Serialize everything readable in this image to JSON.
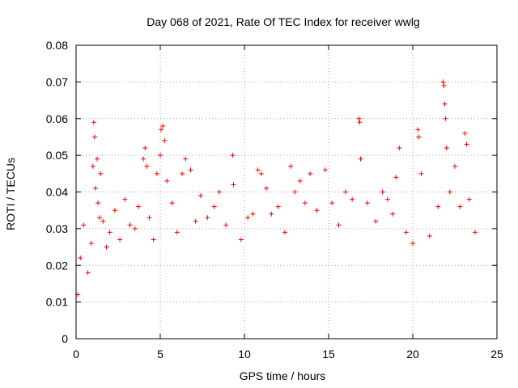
{
  "chart_data": {
    "type": "scatter",
    "title": "Day 068 of 2021, Rate Of TEC Index for receiver wwlg",
    "xlabel": "GPS time / hours",
    "ylabel": "ROTI / TECUs",
    "xlim": [
      0,
      25
    ],
    "ylim": [
      0,
      0.08
    ],
    "xticks": [
      0,
      5,
      10,
      15,
      20,
      25
    ],
    "xtick_labels": [
      "0",
      "5",
      "10",
      "15",
      "20",
      "25"
    ],
    "yticks": [
      0,
      0.01,
      0.02,
      0.03,
      0.04,
      0.05,
      0.06,
      0.07,
      0.08
    ],
    "ytick_labels": [
      "0",
      "0.01",
      "0.02",
      "0.03",
      "0.04",
      "0.05",
      "0.06",
      "0.07",
      "0.08"
    ],
    "grid": true,
    "marker": "+",
    "color": "#ff0000",
    "series": [
      {
        "name": "ROTI",
        "points": [
          [
            0.1,
            0.012
          ],
          [
            0.25,
            0.022
          ],
          [
            0.45,
            0.031
          ],
          [
            0.7,
            0.018
          ],
          [
            0.9,
            0.026
          ],
          [
            1.0,
            0.047
          ],
          [
            1.05,
            0.059
          ],
          [
            1.1,
            0.055
          ],
          [
            1.15,
            0.041
          ],
          [
            1.25,
            0.049
          ],
          [
            1.3,
            0.037
          ],
          [
            1.4,
            0.033
          ],
          [
            1.45,
            0.045
          ],
          [
            1.6,
            0.032
          ],
          [
            1.8,
            0.025
          ],
          [
            2.0,
            0.029
          ],
          [
            2.3,
            0.035
          ],
          [
            2.6,
            0.027
          ],
          [
            2.9,
            0.038
          ],
          [
            3.2,
            0.031
          ],
          [
            3.5,
            0.03
          ],
          [
            3.7,
            0.036
          ],
          [
            4.0,
            0.049
          ],
          [
            4.1,
            0.052
          ],
          [
            4.2,
            0.047
          ],
          [
            4.35,
            0.033
          ],
          [
            4.6,
            0.027
          ],
          [
            4.8,
            0.045
          ],
          [
            5.0,
            0.05
          ],
          [
            5.05,
            0.057
          ],
          [
            5.15,
            0.058
          ],
          [
            5.25,
            0.054
          ],
          [
            5.4,
            0.043
          ],
          [
            5.7,
            0.037
          ],
          [
            6.0,
            0.029
          ],
          [
            6.3,
            0.045
          ],
          [
            6.5,
            0.049
          ],
          [
            6.8,
            0.046
          ],
          [
            7.1,
            0.032
          ],
          [
            7.4,
            0.039
          ],
          [
            7.8,
            0.033
          ],
          [
            8.2,
            0.036
          ],
          [
            8.5,
            0.04
          ],
          [
            8.9,
            0.031
          ],
          [
            9.3,
            0.05
          ],
          [
            9.35,
            0.042
          ],
          [
            9.8,
            0.027
          ],
          [
            10.2,
            0.033
          ],
          [
            10.5,
            0.034
          ],
          [
            10.8,
            0.046
          ],
          [
            11.0,
            0.045
          ],
          [
            11.3,
            0.041
          ],
          [
            11.6,
            0.034
          ],
          [
            12.0,
            0.036
          ],
          [
            12.4,
            0.029
          ],
          [
            12.75,
            0.047
          ],
          [
            13.0,
            0.04
          ],
          [
            13.3,
            0.043
          ],
          [
            13.6,
            0.037
          ],
          [
            13.9,
            0.045
          ],
          [
            14.3,
            0.035
          ],
          [
            14.8,
            0.046
          ],
          [
            15.2,
            0.037
          ],
          [
            15.6,
            0.031
          ],
          [
            16.0,
            0.04
          ],
          [
            16.4,
            0.038
          ],
          [
            16.8,
            0.06
          ],
          [
            16.85,
            0.059
          ],
          [
            16.9,
            0.049
          ],
          [
            17.3,
            0.037
          ],
          [
            17.8,
            0.032
          ],
          [
            18.2,
            0.04
          ],
          [
            18.5,
            0.038
          ],
          [
            18.8,
            0.034
          ],
          [
            19.0,
            0.044
          ],
          [
            19.2,
            0.052
          ],
          [
            19.6,
            0.029
          ],
          [
            20.0,
            0.026
          ],
          [
            20.3,
            0.057
          ],
          [
            20.35,
            0.055
          ],
          [
            20.5,
            0.045
          ],
          [
            21.0,
            0.028
          ],
          [
            21.5,
            0.036
          ],
          [
            21.8,
            0.07
          ],
          [
            21.85,
            0.069
          ],
          [
            21.9,
            0.064
          ],
          [
            21.95,
            0.06
          ],
          [
            22.0,
            0.052
          ],
          [
            22.2,
            0.04
          ],
          [
            22.5,
            0.047
          ],
          [
            22.8,
            0.036
          ],
          [
            23.1,
            0.056
          ],
          [
            23.2,
            0.053
          ],
          [
            23.35,
            0.038
          ],
          [
            23.7,
            0.029
          ]
        ]
      }
    ]
  }
}
